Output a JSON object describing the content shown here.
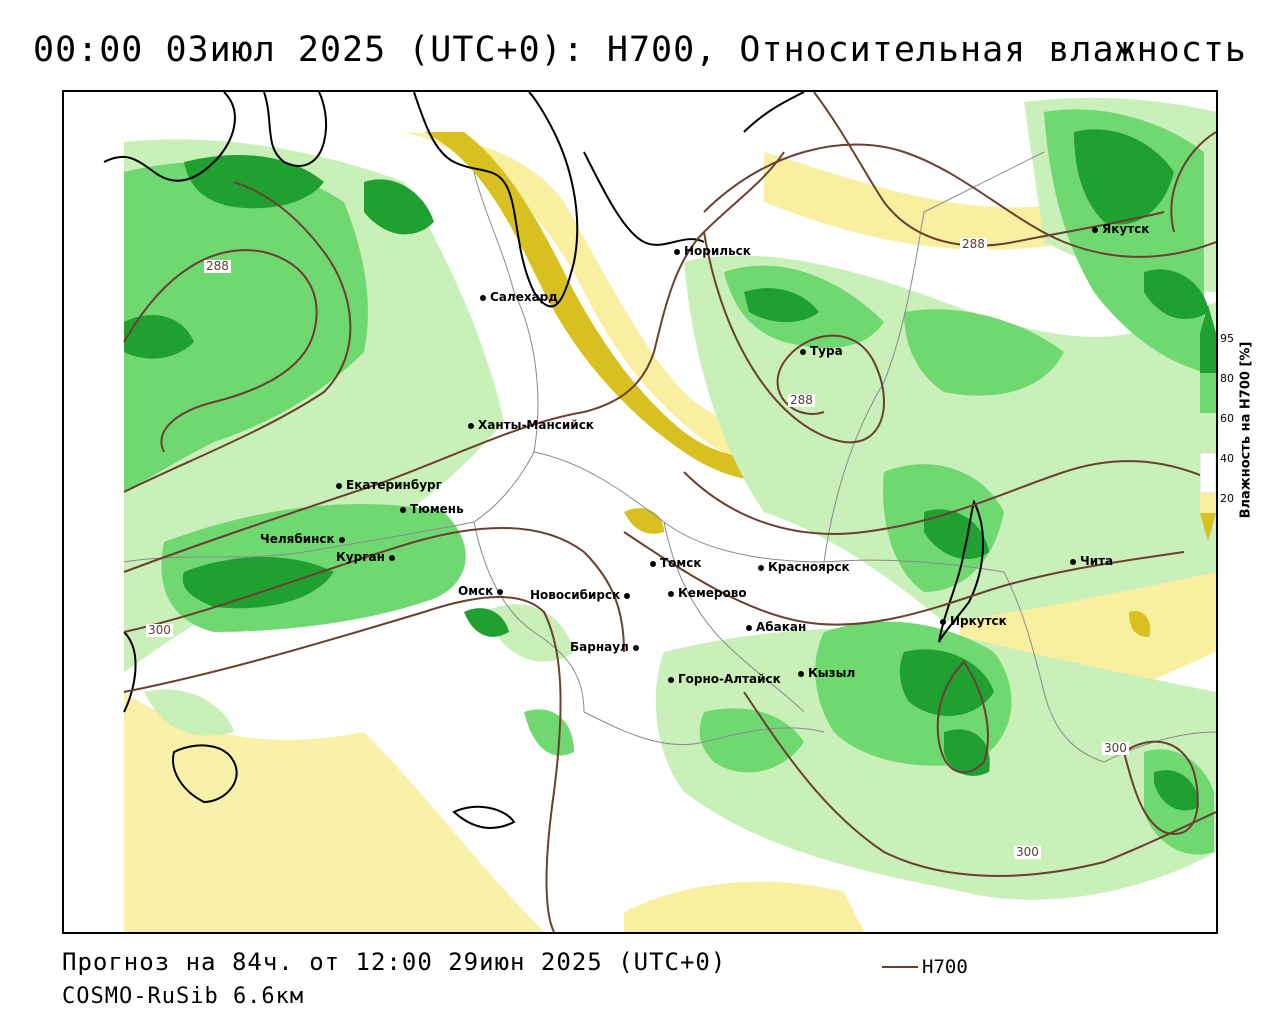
{
  "title": "00:00 03июл 2025 (UTC+0): H700, Относительная влажность",
  "footer": {
    "forecast": "Прогноз на 84ч. от 12:00 29июн 2025 (UTC+0)",
    "model": "COSMO-RuSib 6.6км",
    "contour_legend": "H700"
  },
  "colorbar": {
    "title": "Влажность на H700 [%]",
    "ticks": [
      "95",
      "80",
      "60",
      "40",
      "20"
    ],
    "colors": {
      "very_dry": "#d8c020",
      "dry": "#f8f0a0",
      "neutral": "#ffffff",
      "moist": "#c8f0b8",
      "wet": "#70d870",
      "very_wet": "#20a030"
    }
  },
  "contour_color": "#6b4030",
  "contour_labels": [
    "288",
    "288",
    "288",
    "300",
    "300",
    "300"
  ],
  "cities": [
    {
      "name": "Салехард"
    },
    {
      "name": "Норильск"
    },
    {
      "name": "Якутск"
    },
    {
      "name": "Тура"
    },
    {
      "name": "Ханты-Мансийск"
    },
    {
      "name": "Екатеринбург"
    },
    {
      "name": "Тюмень"
    },
    {
      "name": "Челябинск"
    },
    {
      "name": "Курган"
    },
    {
      "name": "Омск"
    },
    {
      "name": "Новосибирск"
    },
    {
      "name": "Томск"
    },
    {
      "name": "Кемерово"
    },
    {
      "name": "Красноярск"
    },
    {
      "name": "Барнаул"
    },
    {
      "name": "Абакан"
    },
    {
      "name": "Горно-Алтайск"
    },
    {
      "name": "Кызыл"
    },
    {
      "name": "Иркутск"
    },
    {
      "name": "Чита"
    }
  ]
}
